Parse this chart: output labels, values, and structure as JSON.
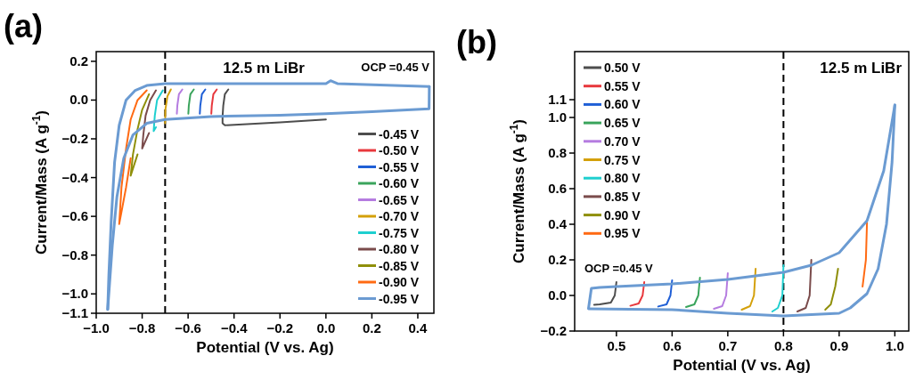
{
  "chart_data": [
    {
      "type": "line",
      "title": "(a)",
      "xlabel": "Potential (V vs. Ag)",
      "ylabel": "Current/Mass (A g$^{-1}$)",
      "annotations": [
        "12.5 m LiBr",
        "OCP =0.45 V"
      ],
      "xlim": [
        -1.0,
        0.47
      ],
      "ylim": [
        -1.1,
        0.25
      ],
      "xticks": [
        {
          "value": -1.0,
          "label": "−1.0"
        },
        {
          "value": -0.8,
          "label": "−0.8"
        },
        {
          "value": -0.6,
          "label": "−0.6"
        },
        {
          "value": -0.4,
          "label": "−0.4"
        },
        {
          "value": -0.2,
          "label": "−0.2"
        },
        {
          "value": 0,
          "label": "0.0"
        },
        0.2,
        0.4
      ],
      "yticks": [
        {
          "value": -1.1,
          "label": "−1.1"
        },
        {
          "value": -1.0,
          "label": "−1.0"
        },
        {
          "value": -0.8,
          "label": "−0.8"
        },
        {
          "value": -0.6,
          "label": "−0.6"
        },
        {
          "value": -0.4,
          "label": "−0.4"
        },
        {
          "value": -0.2,
          "label": "−0.2"
        },
        {
          "value": 0,
          "label": "0.0"
        },
        0.2
      ],
      "ref_lines": [
        {
          "axis": "x",
          "value": -0.7,
          "color": "#000000",
          "line_style": "dashed"
        }
      ],
      "grid": false,
      "legend": "bottom right",
      "marker": "none",
      "line_style": "solid",
      "series": [
        {
          "name": "-0.45 V",
          "color": "#4d4d4d",
          "x": [
            0,
            -0.2,
            -0.44,
            -0.45,
            -0.45,
            -0.447,
            -0.44,
            -0.425
          ],
          "values": [
            -0.1,
            -0.115,
            -0.13,
            -0.12,
            -0.085,
            -0.03,
            0.03,
            0.055
          ]
        },
        {
          "name": "-0.50 V",
          "color": "#e8383d",
          "x": [
            -0.499,
            -0.497,
            -0.49,
            -0.475
          ],
          "values": [
            -0.07,
            -0.03,
            0.03,
            0.055
          ]
        },
        {
          "name": "-0.55 V",
          "color": "#1f5fd6",
          "x": [
            -0.549,
            -0.547,
            -0.54,
            -0.525
          ],
          "values": [
            -0.07,
            -0.03,
            0.03,
            0.055
          ]
        },
        {
          "name": "-0.60 V",
          "color": "#3aa45c",
          "x": [
            -0.599,
            -0.597,
            -0.59,
            -0.575
          ],
          "values": [
            -0.07,
            -0.03,
            0.03,
            0.055
          ]
        },
        {
          "name": "-0.65 V",
          "color": "#b57ce0",
          "x": [
            -0.649,
            -0.647,
            -0.64,
            -0.625
          ],
          "values": [
            -0.07,
            -0.03,
            0.03,
            0.055
          ]
        },
        {
          "name": "-0.70 V",
          "color": "#d4a00a",
          "x": [
            -0.7,
            -0.699,
            -0.69,
            -0.675
          ],
          "values": [
            -0.12,
            -0.05,
            0.02,
            0.055
          ]
        },
        {
          "name": "-0.75 V",
          "color": "#1ecfcf",
          "x": [
            -0.74,
            -0.75,
            -0.745,
            -0.735,
            -0.71
          ],
          "values": [
            -0.14,
            -0.16,
            -0.08,
            0.0,
            0.05
          ]
        },
        {
          "name": "-0.80 V",
          "color": "#7a4b4b",
          "x": [
            -0.77,
            -0.8,
            -0.795,
            -0.785,
            -0.765,
            -0.74
          ],
          "values": [
            -0.17,
            -0.25,
            -0.18,
            -0.08,
            0.0,
            0.05
          ]
        },
        {
          "name": "-0.85 V",
          "color": "#8f8f0a",
          "x": [
            -0.82,
            -0.85,
            -0.84,
            -0.82,
            -0.8,
            -0.77
          ],
          "values": [
            -0.28,
            -0.39,
            -0.28,
            -0.15,
            -0.05,
            0.03
          ]
        },
        {
          "name": "-0.90 V",
          "color": "#ff6a13",
          "x": [
            -0.85,
            -0.87,
            -0.9,
            -0.89,
            -0.87,
            -0.85,
            -0.82,
            -0.78
          ],
          "values": [
            -0.3,
            -0.45,
            -0.64,
            -0.45,
            -0.25,
            -0.1,
            0.0,
            0.05
          ]
        },
        {
          "name": "-0.95 V",
          "color": "#6b9bd2",
          "x": [
            0.45,
            0.449,
            0.2,
            0,
            -0.2,
            -0.5,
            -0.7,
            -0.78,
            -0.84,
            -0.88,
            -0.91,
            -0.93,
            -0.95
          ],
          "values": [
            0.07,
            -0.045,
            -0.06,
            -0.07,
            -0.078,
            -0.085,
            -0.1,
            -0.12,
            -0.18,
            -0.3,
            -0.5,
            -0.75,
            -1.08
          ]
        },
        {
          "color": "#6b9bd2",
          "x": [
            -0.95,
            -0.945,
            -0.935,
            -0.92,
            -0.9,
            -0.87,
            -0.83,
            -0.78,
            -0.7,
            -0.5,
            0,
            0.02,
            0.05,
            0.45
          ],
          "values": [
            -1.08,
            -0.9,
            -0.63,
            -0.32,
            -0.13,
            0.0,
            0.05,
            0.075,
            0.085,
            0.085,
            0.085,
            0.1,
            0.085,
            0.07
          ]
        }
      ]
    },
    {
      "type": "line",
      "title": "(b)",
      "xlabel": "Potential (V vs. Ag)",
      "ylabel": "Current/Mass (A g$^{-1}$)",
      "annotations": [
        "12.5 m LiBr",
        "OCP =0.45 V"
      ],
      "xlim": [
        0.425,
        1.025
      ],
      "ylim": [
        -0.2,
        1.37
      ],
      "xticks": [
        0.5,
        0.6,
        0.7,
        0.8,
        0.9,
        {
          "value": 1.0,
          "label": "1.0"
        }
      ],
      "yticks": [
        {
          "value": -0.2,
          "label": "−0.2"
        },
        {
          "value": 0,
          "label": "0.0"
        },
        0.2,
        0.4,
        0.6,
        0.8,
        {
          "value": 1.0,
          "label": "1.0"
        },
        1.1
      ],
      "ref_lines": [
        {
          "axis": "x",
          "value": 0.8,
          "color": "#000000",
          "line_style": "dashed"
        }
      ],
      "grid": false,
      "legend": "top left",
      "marker": "none",
      "line_style": "solid",
      "series": [
        {
          "name": "0.50 V",
          "color": "#4d4d4d",
          "x": [
            0.5,
            0.497,
            0.49,
            0.47,
            0.46
          ],
          "values": [
            0.075,
            0.0,
            -0.04,
            -0.05,
            -0.052
          ]
        },
        {
          "name": "0.55 V",
          "color": "#e8383d",
          "x": [
            0.55,
            0.547,
            0.54,
            0.525
          ],
          "values": [
            0.075,
            0.0,
            -0.045,
            -0.058
          ]
        },
        {
          "name": "0.60 V",
          "color": "#1f5fd6",
          "x": [
            0.6,
            0.597,
            0.59,
            0.575
          ],
          "values": [
            0.085,
            0.0,
            -0.05,
            -0.062
          ]
        },
        {
          "name": "0.65 V",
          "color": "#3aa45c",
          "x": [
            0.65,
            0.647,
            0.64,
            0.625
          ],
          "values": [
            0.1,
            0.0,
            -0.05,
            -0.065
          ]
        },
        {
          "name": "0.70 V",
          "color": "#b57ce0",
          "x": [
            0.7,
            0.697,
            0.69,
            0.675
          ],
          "values": [
            0.125,
            0.0,
            -0.06,
            -0.075
          ]
        },
        {
          "name": "0.75 V",
          "color": "#d4a00a",
          "x": [
            0.75,
            0.747,
            0.74,
            0.725
          ],
          "values": [
            0.15,
            0.0,
            -0.06,
            -0.08
          ]
        },
        {
          "name": "0.80 V",
          "color": "#1ecfcf",
          "x": [
            0.8,
            0.798,
            0.79,
            0.78
          ],
          "values": [
            0.17,
            0.0,
            -0.07,
            -0.09
          ]
        },
        {
          "name": "0.85 V",
          "color": "#7a4b4b",
          "x": [
            0.85,
            0.847,
            0.84,
            0.825
          ],
          "values": [
            0.2,
            0.0,
            -0.07,
            -0.09
          ]
        },
        {
          "name": "0.90 V",
          "color": "#8f8f0a",
          "x": [
            0.898,
            0.893,
            0.885,
            0.875
          ],
          "values": [
            0.15,
            0.05,
            -0.05,
            -0.08
          ]
        },
        {
          "name": "0.95 V",
          "color": "#ff6a13",
          "x": [
            0.95,
            0.948,
            0.942
          ],
          "values": [
            0.41,
            0.2,
            0.05
          ]
        },
        {
          "color": "#6b9bd2",
          "x": [
            0.45,
            0.455,
            0.47,
            0.5,
            0.6,
            0.7,
            0.8,
            0.85,
            0.9,
            0.95,
            0.98,
            1.0
          ],
          "values": [
            -0.07,
            0.04,
            0.045,
            0.05,
            0.065,
            0.09,
            0.13,
            0.17,
            0.24,
            0.42,
            0.7,
            1.07
          ]
        },
        {
          "color": "#6b9bd2",
          "x": [
            1.0,
            0.995,
            0.985,
            0.97,
            0.95,
            0.92,
            0.9,
            0.8,
            0.7,
            0.6,
            0.45
          ],
          "values": [
            1.07,
            0.75,
            0.4,
            0.15,
            0.01,
            -0.07,
            -0.1,
            -0.115,
            -0.1,
            -0.08,
            -0.075
          ]
        }
      ]
    }
  ]
}
